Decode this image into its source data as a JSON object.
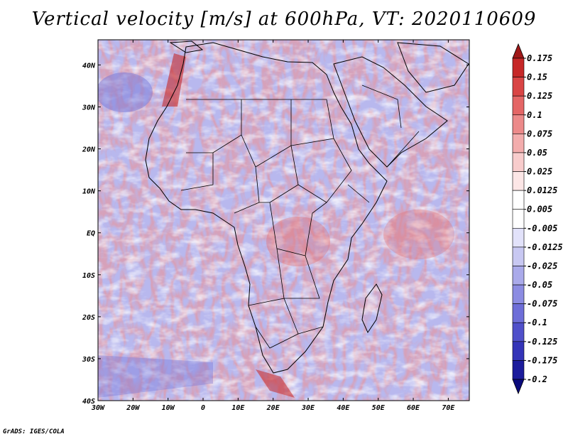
{
  "title": "Vertical velocity [m/s] at 600hPa, VT: 2020110609",
  "credit": "GrADS: IGES/COLA",
  "map": {
    "variable": "Vertical velocity",
    "units": "m/s",
    "level": "600hPa",
    "valid_time": "2020110609",
    "lon_range": [
      -30,
      76
    ],
    "lat_range": [
      -40,
      46
    ],
    "lat_ticks": [
      {
        "value": 40,
        "label": "40N"
      },
      {
        "value": 30,
        "label": "30N"
      },
      {
        "value": 20,
        "label": "20N"
      },
      {
        "value": 10,
        "label": "10N"
      },
      {
        "value": 0,
        "label": "EQ"
      },
      {
        "value": -10,
        "label": "10S"
      },
      {
        "value": -20,
        "label": "20S"
      },
      {
        "value": -30,
        "label": "30S"
      },
      {
        "value": -40,
        "label": "40S"
      }
    ],
    "lon_ticks": [
      {
        "value": -30,
        "label": "30W"
      },
      {
        "value": -20,
        "label": "20W"
      },
      {
        "value": -10,
        "label": "10W"
      },
      {
        "value": 0,
        "label": "0"
      },
      {
        "value": 10,
        "label": "10E"
      },
      {
        "value": 20,
        "label": "20E"
      },
      {
        "value": 30,
        "label": "30E"
      },
      {
        "value": 40,
        "label": "40E"
      },
      {
        "value": 50,
        "label": "50E"
      },
      {
        "value": 60,
        "label": "60E"
      },
      {
        "value": 70,
        "label": "70E"
      }
    ]
  },
  "colorbar": {
    "colors": [
      "#a01818",
      "#c62828",
      "#d94545",
      "#e46666",
      "#ec8a8a",
      "#f3adad",
      "#f8cccc",
      "#fce6e6",
      "#ffffff",
      "#ffffff",
      "#e2e2fa",
      "#c8c8f2",
      "#aaaaea",
      "#8c8ce2",
      "#6e6ed8",
      "#5050ca",
      "#3434b8",
      "#1c1c9c",
      "#0a0a7c"
    ],
    "labels": [
      "0.175",
      "0.15",
      "0.125",
      "0.1",
      "0.075",
      "0.05",
      "0.025",
      "0.0125",
      "0.005",
      "-0.005",
      "-0.0125",
      "-0.025",
      "-0.05",
      "-0.075",
      "-0.1",
      "-0.125",
      "-0.175",
      "-0.2"
    ]
  }
}
